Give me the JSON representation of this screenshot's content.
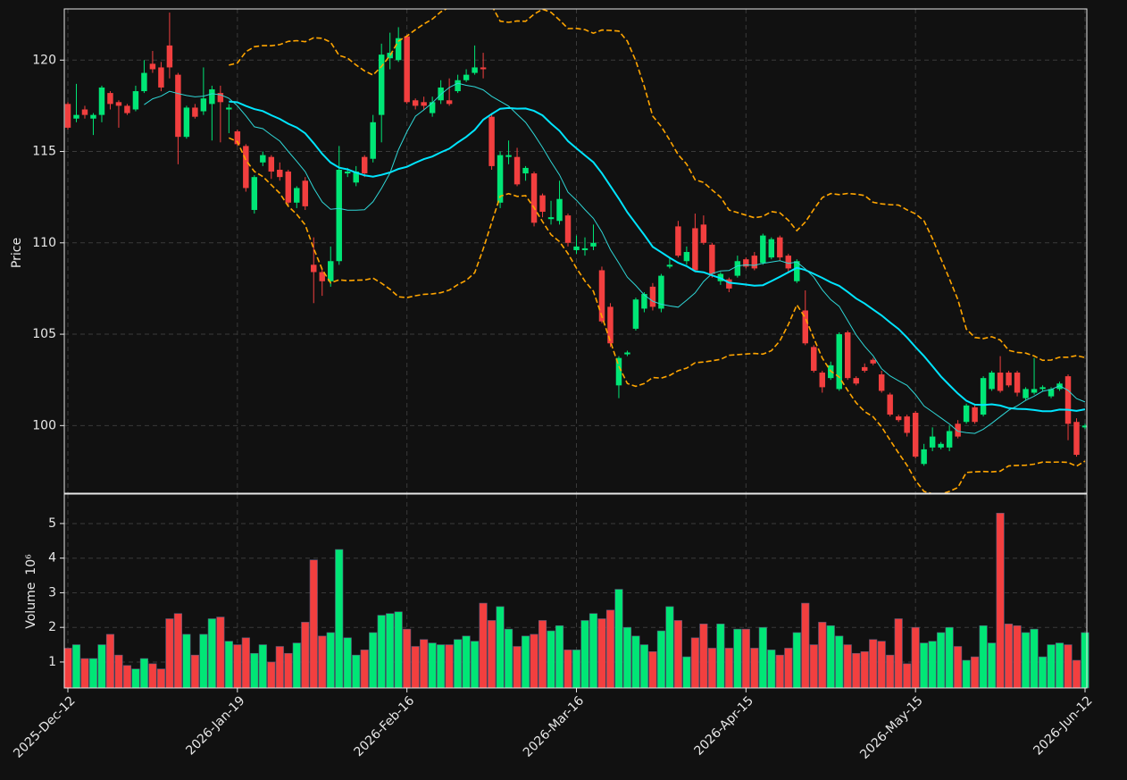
{
  "chart_data": [
    {
      "type": "candlestick",
      "ylabel": "Price",
      "open": [
        117.6,
        116.8,
        117.3,
        116.8,
        117.0,
        118.2,
        117.7,
        117.5,
        117.3,
        118.3,
        119.8,
        119.6,
        120.8,
        119.2,
        115.8,
        117.4,
        117.2,
        117.6,
        118.2,
        117.3,
        116.1,
        115.3,
        111.8,
        114.4,
        114.7,
        114.0,
        113.9,
        112.2,
        113.4,
        108.8,
        108.4,
        107.9,
        109.0,
        113.8,
        113.3,
        114.7,
        114.6,
        117.0,
        120.1,
        120.0,
        121.3,
        117.8,
        117.7,
        117.1,
        117.8,
        117.8,
        118.3,
        118.9,
        119.3,
        119.6,
        116.9,
        112.2,
        114.7,
        114.7,
        113.8,
        113.8,
        112.6,
        111.3,
        111.2,
        111.5,
        109.6,
        109.6,
        109.8,
        108.5,
        106.5,
        102.2,
        103.9,
        105.3,
        106.4,
        107.6,
        106.4,
        108.7,
        110.9,
        109.0,
        110.8,
        111.0,
        109.9,
        107.9,
        108.0,
        108.2,
        109.1,
        109.3,
        108.9,
        109.2,
        110.3,
        109.3,
        107.9,
        106.3,
        104.3,
        102.9,
        102.6,
        102.0,
        105.1,
        102.6,
        103.2,
        103.6,
        102.8,
        101.7,
        100.5,
        100.5,
        100.7,
        97.9,
        98.8,
        98.8,
        98.8,
        100.1,
        100.2,
        101.0,
        100.6,
        102.0,
        102.9,
        102.9,
        102.9,
        101.5,
        101.8,
        102.0,
        101.6,
        102.0,
        102.7,
        100.2,
        99.9
      ],
      "high": [
        117.7,
        118.7,
        117.5,
        117.1,
        118.6,
        118.3,
        117.8,
        117.6,
        118.6,
        120.0,
        120.5,
        119.9,
        122.6,
        119.3,
        117.5,
        117.6,
        119.6,
        118.6,
        118.6,
        117.6,
        116.2,
        115.4,
        113.7,
        115.0,
        114.8,
        114.4,
        114.0,
        113.1,
        113.6,
        110.3,
        108.6,
        109.8,
        115.3,
        114.1,
        114.2,
        114.8,
        117.0,
        120.9,
        121.5,
        121.8,
        121.4,
        117.9,
        118.0,
        118.0,
        118.9,
        119.0,
        119.2,
        119.5,
        120.8,
        120.4,
        117.1,
        115.0,
        115.6,
        115.2,
        114.2,
        113.9,
        112.7,
        112.3,
        113.4,
        111.6,
        110.4,
        110.3,
        111.0,
        108.7,
        106.7,
        103.8,
        104.1,
        107.0,
        107.3,
        107.8,
        108.3,
        109.2,
        111.2,
        109.8,
        111.6,
        111.5,
        110.0,
        108.4,
        108.1,
        109.3,
        109.2,
        109.5,
        110.5,
        110.3,
        110.4,
        109.4,
        109.1,
        107.4,
        104.4,
        103.0,
        103.5,
        105.1,
        105.2,
        102.7,
        103.4,
        103.7,
        103.0,
        101.8,
        100.6,
        100.6,
        100.8,
        99.0,
        99.9,
        99.1,
        100.0,
        100.3,
        101.2,
        101.1,
        102.7,
        103.0,
        103.8,
        103.0,
        103.0,
        102.1,
        103.7,
        102.2,
        102.1,
        102.4,
        102.8,
        100.4,
        100.1
      ],
      "low": [
        116.2,
        116.6,
        116.8,
        115.9,
        116.6,
        117.3,
        116.3,
        117.0,
        117.2,
        118.2,
        119.3,
        118.3,
        119.0,
        114.3,
        115.7,
        116.8,
        117.0,
        115.6,
        115.5,
        116.0,
        115.3,
        112.8,
        111.6,
        114.2,
        113.5,
        113.4,
        112.0,
        111.9,
        111.8,
        106.7,
        107.1,
        107.6,
        108.8,
        113.6,
        113.1,
        113.6,
        114.4,
        115.5,
        119.5,
        119.9,
        117.6,
        117.3,
        117.3,
        116.9,
        117.6,
        117.5,
        118.2,
        118.8,
        119.2,
        119.0,
        114.0,
        111.9,
        114.3,
        113.1,
        113.4,
        110.9,
        111.4,
        111.0,
        111.0,
        109.8,
        109.4,
        109.3,
        109.6,
        105.6,
        104.3,
        101.5,
        103.8,
        105.2,
        106.2,
        106.3,
        106.2,
        108.6,
        109.2,
        108.8,
        108.4,
        109.9,
        108.1,
        107.7,
        107.3,
        108.1,
        108.6,
        108.5,
        108.8,
        109.1,
        109.0,
        108.4,
        107.8,
        104.4,
        102.9,
        101.8,
        102.5,
        101.9,
        102.5,
        102.2,
        102.9,
        103.3,
        101.8,
        100.5,
        100.2,
        99.4,
        98.2,
        97.8,
        98.6,
        98.7,
        98.6,
        99.3,
        100.1,
        100.1,
        100.5,
        101.9,
        101.8,
        102.1,
        101.6,
        101.4,
        101.7,
        101.9,
        101.5,
        101.9,
        99.2,
        98.3,
        99.8
      ],
      "close": [
        116.3,
        117.0,
        117.0,
        117.0,
        118.5,
        117.6,
        117.5,
        117.1,
        118.3,
        119.3,
        119.5,
        118.5,
        119.6,
        115.8,
        117.4,
        116.9,
        117.9,
        118.4,
        117.7,
        117.4,
        115.4,
        113.0,
        113.6,
        114.8,
        113.9,
        113.6,
        112.2,
        113.0,
        112.0,
        108.4,
        107.9,
        109.0,
        114.0,
        113.9,
        113.9,
        113.8,
        116.6,
        120.3,
        120.4,
        121.2,
        117.7,
        117.5,
        117.5,
        117.7,
        118.5,
        117.6,
        118.9,
        119.2,
        119.6,
        119.5,
        114.2,
        114.8,
        114.8,
        113.2,
        114.1,
        111.1,
        111.7,
        111.4,
        112.4,
        110.0,
        109.8,
        109.7,
        110.0,
        105.7,
        104.5,
        103.7,
        104.0,
        106.9,
        107.2,
        106.5,
        108.2,
        108.8,
        109.3,
        109.5,
        108.5,
        110.0,
        108.3,
        108.3,
        107.5,
        109.0,
        108.7,
        108.6,
        110.4,
        110.2,
        109.2,
        108.6,
        109.0,
        104.5,
        103.0,
        102.1,
        103.3,
        105.0,
        102.6,
        102.3,
        103.0,
        103.4,
        101.9,
        100.6,
        100.3,
        99.6,
        98.3,
        98.7,
        99.4,
        99.0,
        99.7,
        99.4,
        101.1,
        100.2,
        102.6,
        102.9,
        101.9,
        102.2,
        101.8,
        102.0,
        102.0,
        102.1,
        102.0,
        102.3,
        100.1,
        98.4,
        100.0
      ],
      "up_color": "#00e676",
      "down_color": "#f23f3f",
      "moving_averages": [
        {
          "period": 20,
          "color": "#00e5ff",
          "width": 2
        },
        {
          "period": 10,
          "color": "#2fd6d6",
          "width": 1
        }
      ],
      "bollinger": {
        "period": 20,
        "std": 2,
        "color": "#ffa500"
      },
      "ylim": [
        96.3,
        122.8
      ],
      "yticks": [
        100,
        105,
        110,
        115,
        120
      ],
      "grid": true
    },
    {
      "type": "bar",
      "ylabel": "Volume",
      "scale_label": "10⁶",
      "categories": [
        "2025-Dec-12",
        null,
        null,
        null,
        null,
        null,
        null,
        null,
        null,
        null,
        null,
        null,
        null,
        null,
        null,
        null,
        null,
        null,
        null,
        null,
        "2026-Jan-19",
        null,
        null,
        null,
        null,
        null,
        null,
        null,
        null,
        null,
        null,
        null,
        null,
        null,
        null,
        null,
        null,
        null,
        null,
        null,
        "2026-Feb-16",
        null,
        null,
        null,
        null,
        null,
        null,
        null,
        null,
        null,
        null,
        null,
        null,
        null,
        null,
        null,
        null,
        null,
        null,
        null,
        "2026-Mar-16",
        null,
        null,
        null,
        null,
        null,
        null,
        null,
        null,
        null,
        null,
        null,
        null,
        null,
        null,
        null,
        null,
        null,
        null,
        null,
        "2026-Apr-15",
        null,
        null,
        null,
        null,
        null,
        null,
        null,
        null,
        null,
        null,
        null,
        null,
        null,
        null,
        null,
        null,
        null,
        null,
        null,
        "2026-May-15",
        null,
        null,
        null,
        null,
        null,
        null,
        null,
        null,
        null,
        null,
        null,
        null,
        null,
        null,
        null,
        null,
        null,
        null,
        null,
        "2026-Jun-12"
      ],
      "values": [
        1.4,
        1.5,
        1.1,
        1.1,
        1.5,
        1.8,
        1.2,
        0.9,
        0.8,
        1.1,
        0.95,
        0.8,
        2.25,
        2.4,
        1.8,
        1.2,
        1.8,
        2.25,
        2.3,
        1.6,
        1.5,
        1.7,
        1.25,
        1.5,
        1.0,
        1.45,
        1.25,
        1.55,
        2.15,
        3.95,
        1.75,
        1.85,
        4.25,
        1.7,
        1.2,
        1.35,
        1.85,
        2.35,
        2.4,
        2.45,
        1.95,
        1.45,
        1.65,
        1.55,
        1.5,
        1.5,
        1.65,
        1.75,
        1.6,
        2.7,
        2.2,
        2.6,
        1.95,
        1.45,
        1.75,
        1.8,
        2.2,
        1.9,
        2.05,
        1.35,
        1.35,
        2.2,
        2.4,
        2.25,
        2.5,
        3.1,
        2.0,
        1.75,
        1.5,
        1.3,
        1.9,
        2.6,
        2.2,
        1.15,
        1.7,
        2.1,
        1.4,
        2.1,
        1.4,
        1.95,
        1.95,
        1.4,
        2.0,
        1.35,
        1.2,
        1.4,
        1.85,
        2.7,
        1.5,
        2.15,
        2.05,
        1.75,
        1.5,
        1.25,
        1.3,
        1.65,
        1.6,
        1.2,
        2.25,
        0.95,
        2.0,
        1.55,
        1.6,
        1.85,
        2.0,
        1.45,
        1.05,
        1.15,
        2.05,
        1.55,
        5.3,
        2.1,
        2.05,
        1.85,
        1.95,
        1.15,
        1.5,
        1.55,
        1.5,
        1.05,
        1.85
      ],
      "ylim": [
        0.25,
        5.85
      ],
      "yticks": [
        1,
        2,
        3,
        4,
        5
      ],
      "grid": true
    }
  ]
}
